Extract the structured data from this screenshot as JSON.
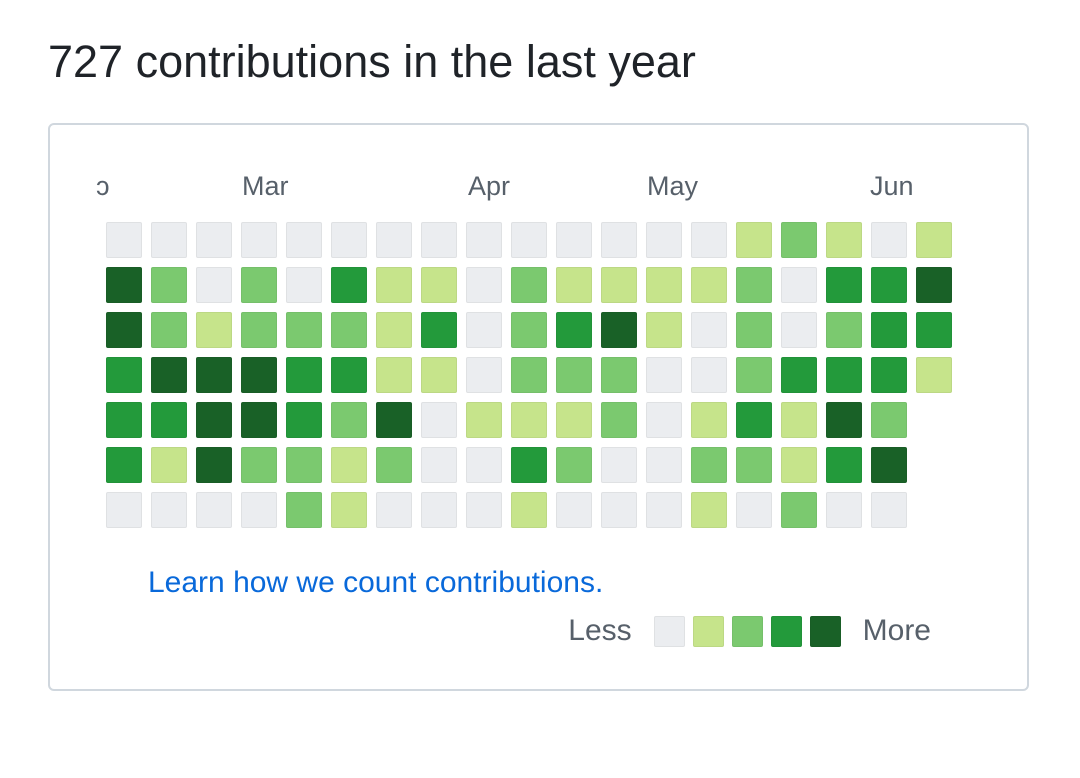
{
  "heading": "727 contributions in the last year",
  "months": [
    "ɔ",
    "Mar",
    "Apr",
    "May",
    "Jun"
  ],
  "level_colors": [
    "#ebedf0",
    "#c6e48b",
    "#7bc96f",
    "#239a3b",
    "#196127"
  ],
  "weeks": [
    [
      0,
      4,
      4,
      3,
      3,
      3,
      0
    ],
    [
      0,
      2,
      2,
      4,
      3,
      1,
      0
    ],
    [
      0,
      0,
      1,
      4,
      4,
      4,
      0
    ],
    [
      0,
      2,
      2,
      4,
      4,
      2,
      0
    ],
    [
      0,
      0,
      2,
      3,
      3,
      2,
      2
    ],
    [
      0,
      3,
      2,
      3,
      2,
      1,
      1
    ],
    [
      0,
      1,
      1,
      1,
      4,
      2,
      0
    ],
    [
      0,
      1,
      3,
      1,
      0,
      0,
      0
    ],
    [
      0,
      0,
      0,
      0,
      1,
      0,
      0
    ],
    [
      0,
      2,
      2,
      2,
      1,
      3,
      1
    ],
    [
      0,
      1,
      3,
      2,
      1,
      2,
      0
    ],
    [
      0,
      1,
      4,
      2,
      2,
      0,
      0
    ],
    [
      0,
      1,
      1,
      0,
      0,
      0,
      0
    ],
    [
      0,
      1,
      0,
      0,
      1,
      2,
      1
    ],
    [
      1,
      2,
      2,
      2,
      3,
      2,
      0
    ],
    [
      2,
      0,
      0,
      3,
      1,
      1,
      2
    ],
    [
      1,
      3,
      2,
      3,
      4,
      3,
      0
    ],
    [
      0,
      3,
      3,
      3,
      2,
      4,
      0
    ],
    [
      1,
      4,
      3,
      1,
      null,
      null,
      null
    ]
  ],
  "learn_link": "Learn how we count contributions.",
  "legend": {
    "less": "Less",
    "more": "More",
    "levels": [
      0,
      1,
      2,
      3,
      4
    ]
  }
}
